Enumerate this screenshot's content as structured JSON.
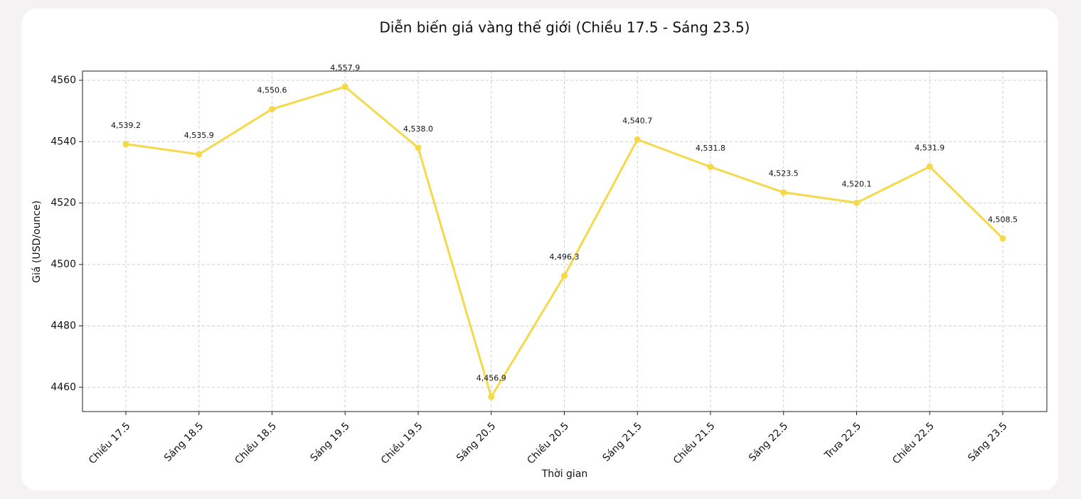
{
  "chart_data": {
    "type": "line",
    "title": "Diễn biến giá vàng thế giới (Chiều 17.5 - Sáng 23.5)",
    "xlabel": "Thời gian",
    "ylabel": "Giá (USD/ounce)",
    "categories": [
      "Chiều 17.5",
      "Sáng 18.5",
      "Chiều 18.5",
      "Sáng 19.5",
      "Chiều 19.5",
      "Sáng 20.5",
      "Chiều 20.5",
      "Sáng 21.5",
      "Chiều 21.5",
      "Sáng 22.5",
      "Trưa 22.5",
      "Chiều 22.5",
      "Sáng 23.5"
    ],
    "series": [
      {
        "color": "#f5d94a",
        "values": [
          4539.2,
          4535.9,
          4550.6,
          4557.9,
          4538.0,
          4456.9,
          4496.3,
          4540.7,
          4531.8,
          4523.5,
          4520.1,
          4531.9,
          4508.5
        ],
        "value_labels": [
          "4,539.2",
          "4,535.9",
          "4,550.6",
          "4,557.9",
          "4,538.0",
          "4,456.9",
          "4,496.3",
          "4,540.7",
          "4,531.8",
          "4,523.5",
          "4,520.1",
          "4,531.9",
          "4,508.5"
        ]
      }
    ],
    "ylim": [
      4452.1,
      4563.0
    ],
    "yticks": [
      4460,
      4480,
      4500,
      4520,
      4540,
      4560
    ],
    "grid": true
  }
}
